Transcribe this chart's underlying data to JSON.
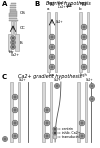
{
  "panel_A_label": "A",
  "panel_B_label": "B",
  "panel_C_label": "C",
  "barrier_hypothesis": "Barrier hypothesis",
  "gradient_hypothesis": "Ca2+ gradient hypothesis",
  "labels_OS": "OS",
  "labels_CC": "CC",
  "labels_IS": "IS",
  "bg_color": "#ffffff",
  "wall_color": "#d8d8d8",
  "wall_edge": "#999999",
  "circle_fill": "#aaaaaa",
  "circle_edge": "#666666",
  "dot_fill": "#ffffff",
  "dot_edge": "#333333",
  "arrow_color": "#333333",
  "text_color": "#222222",
  "os_bar_color": "#bbbbbb",
  "os_bar_edge": "#888888"
}
